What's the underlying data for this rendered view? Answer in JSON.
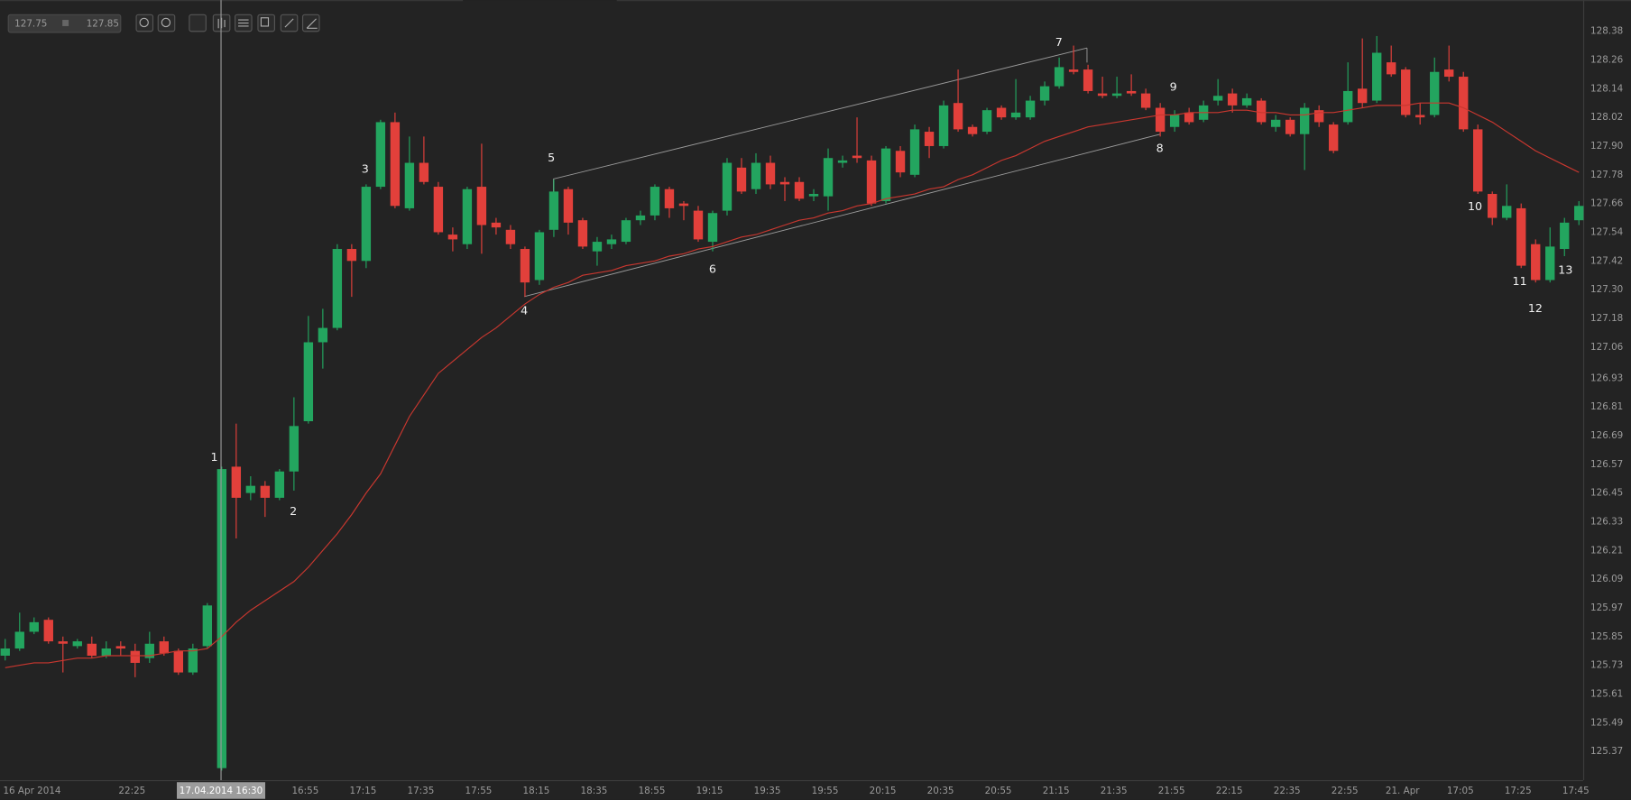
{
  "toolbar": {
    "range_from": "127.75",
    "range_to": "127.85"
  },
  "chart_data": {
    "type": "candlestick",
    "crosshair": "17.04.2014 16:30",
    "categories": [
      "16 Apr 2014",
      null,
      null,
      null,
      null,
      null,
      null,
      null,
      null,
      "22:25",
      null,
      null,
      null,
      null,
      null,
      null,
      null,
      null,
      null,
      null,
      null,
      "16:55",
      null,
      null,
      null,
      "17:15",
      null,
      null,
      null,
      "17:35",
      null,
      null,
      null,
      "17:55",
      null,
      null,
      null,
      "18:15",
      null,
      null,
      null,
      "18:35",
      null,
      null,
      null,
      "18:55",
      null,
      null,
      null,
      "19:15",
      null,
      null,
      null,
      "19:35",
      null,
      null,
      null,
      "19:55",
      null,
      null,
      null,
      "20:15",
      null,
      null,
      null,
      "20:35",
      null,
      null,
      null,
      "20:55",
      null,
      null,
      null,
      "21:15",
      null,
      null,
      null,
      "21:35",
      null,
      null,
      null,
      "21:55",
      null,
      null,
      null,
      "22:15",
      null,
      null,
      null,
      "22:35",
      null,
      null,
      null,
      "22:55",
      null,
      null,
      null,
      "21. Apr",
      null,
      null,
      null,
      "17:05",
      null,
      null,
      null,
      "17:25",
      null,
      null,
      null,
      "17:45"
    ],
    "open": [
      125.77,
      125.8,
      125.87,
      125.92,
      125.83,
      125.81,
      125.82,
      125.77,
      125.81,
      125.79,
      125.76,
      125.83,
      125.79,
      125.7,
      125.81,
      125.3,
      126.56,
      126.45,
      126.48,
      126.43,
      126.54,
      126.75,
      127.08,
      127.14,
      127.47,
      127.42,
      127.73,
      128.0,
      127.64,
      127.83,
      127.73,
      127.53,
      127.49,
      127.73,
      127.58,
      127.55,
      127.47,
      127.34,
      127.55,
      127.72,
      127.59,
      127.46,
      127.49,
      127.5,
      127.59,
      127.61,
      127.72,
      127.66,
      127.63,
      127.5,
      127.63,
      127.81,
      127.72,
      127.83,
      127.75,
      127.75,
      127.69,
      127.69,
      127.83,
      127.86,
      127.84,
      127.67,
      127.88,
      127.78,
      127.96,
      127.9,
      128.08,
      127.98,
      127.96,
      128.06,
      128.02,
      128.02,
      128.09,
      128.15,
      128.22,
      128.22,
      128.12,
      128.11,
      128.13,
      128.12,
      128.06,
      127.98,
      128.04,
      128.01,
      128.09,
      128.12,
      128.07,
      128.09,
      127.98,
      128.01,
      127.95,
      128.05,
      127.99,
      128.0,
      128.14,
      128.09,
      128.25,
      128.22,
      128.03,
      128.03,
      128.22,
      128.19,
      127.97,
      127.7,
      127.6,
      127.64,
      127.49,
      127.34,
      127.47,
      127.59
    ],
    "high": [
      125.84,
      125.95,
      125.93,
      125.93,
      125.85,
      125.84,
      125.85,
      125.83,
      125.83,
      125.82,
      125.87,
      125.85,
      125.8,
      125.82,
      125.99,
      126.56,
      126.74,
      126.52,
      126.5,
      126.55,
      126.85,
      127.19,
      127.22,
      127.49,
      127.49,
      127.74,
      128.01,
      128.04,
      127.94,
      127.94,
      127.75,
      127.56,
      127.73,
      127.91,
      127.6,
      127.57,
      127.48,
      127.55,
      127.76,
      127.73,
      127.6,
      127.52,
      127.53,
      127.6,
      127.63,
      127.74,
      127.73,
      127.67,
      127.65,
      127.63,
      127.85,
      127.85,
      127.87,
      127.86,
      127.77,
      127.77,
      127.72,
      127.89,
      127.86,
      128.02,
      127.86,
      127.9,
      127.9,
      127.99,
      127.98,
      128.09,
      128.22,
      127.99,
      128.06,
      128.07,
      128.18,
      128.11,
      128.17,
      128.27,
      128.32,
      128.24,
      128.19,
      128.19,
      128.2,
      128.14,
      128.08,
      128.05,
      128.06,
      128.09,
      128.18,
      128.14,
      128.12,
      128.1,
      128.03,
      128.02,
      128.08,
      128.07,
      128.0,
      128.25,
      128.35,
      128.36,
      128.32,
      128.23,
      128.08,
      128.27,
      128.32,
      128.21,
      127.99,
      127.71,
      127.74,
      127.66,
      127.51,
      127.56,
      127.6,
      127.67
    ],
    "low": [
      125.75,
      125.79,
      125.86,
      125.82,
      125.7,
      125.8,
      125.76,
      125.76,
      125.77,
      125.68,
      125.74,
      125.77,
      125.69,
      125.69,
      125.8,
      125.29,
      126.26,
      126.42,
      126.35,
      126.42,
      126.46,
      126.74,
      126.97,
      127.13,
      127.27,
      127.39,
      127.72,
      127.64,
      127.63,
      127.74,
      127.53,
      127.46,
      127.47,
      127.45,
      127.53,
      127.47,
      127.27,
      127.32,
      127.52,
      127.53,
      127.47,
      127.4,
      127.47,
      127.49,
      127.57,
      127.59,
      127.6,
      127.59,
      127.5,
      127.46,
      127.61,
      127.7,
      127.7,
      127.72,
      127.67,
      127.67,
      127.67,
      127.63,
      127.81,
      127.83,
      127.65,
      127.66,
      127.77,
      127.77,
      127.85,
      127.89,
      127.96,
      127.94,
      127.95,
      128.01,
      128.01,
      128.01,
      128.07,
      128.14,
      128.2,
      128.12,
      128.1,
      128.1,
      128.11,
      128.05,
      127.94,
      127.96,
      127.99,
      128.0,
      128.07,
      128.04,
      128.06,
      127.99,
      127.96,
      127.94,
      127.8,
      127.98,
      127.87,
      127.99,
      128.06,
      128.08,
      128.19,
      128.02,
      127.99,
      128.02,
      128.17,
      127.96,
      127.7,
      127.57,
      127.59,
      127.39,
      127.33,
      127.33,
      127.44,
      127.57
    ],
    "close": [
      125.8,
      125.87,
      125.91,
      125.83,
      125.82,
      125.83,
      125.77,
      125.8,
      125.8,
      125.74,
      125.82,
      125.78,
      125.7,
      125.8,
      125.98,
      126.55,
      126.43,
      126.48,
      126.43,
      126.54,
      126.73,
      127.08,
      127.14,
      127.47,
      127.42,
      127.73,
      128.0,
      127.65,
      127.83,
      127.75,
      127.54,
      127.51,
      127.72,
      127.57,
      127.56,
      127.49,
      127.33,
      127.54,
      127.71,
      127.58,
      127.48,
      127.5,
      127.51,
      127.59,
      127.61,
      127.73,
      127.64,
      127.65,
      127.51,
      127.62,
      127.83,
      127.71,
      127.83,
      127.74,
      127.74,
      127.68,
      127.7,
      127.85,
      127.84,
      127.85,
      127.66,
      127.89,
      127.79,
      127.97,
      127.9,
      128.07,
      127.97,
      127.95,
      128.05,
      128.02,
      128.04,
      128.09,
      128.15,
      128.23,
      128.21,
      128.13,
      128.11,
      128.12,
      128.12,
      128.06,
      127.96,
      128.03,
      128.0,
      128.07,
      128.11,
      128.07,
      128.1,
      128.0,
      128.01,
      127.95,
      128.06,
      128.0,
      127.88,
      128.13,
      128.08,
      128.29,
      128.2,
      128.03,
      128.02,
      128.21,
      128.19,
      127.97,
      127.71,
      127.6,
      127.65,
      127.4,
      127.34,
      127.48,
      127.58,
      127.65
    ],
    "up_color": "#23a55f",
    "down_color": "#e2403b",
    "moving_average": {
      "color": "#c9372f",
      "values": [
        125.72,
        125.73,
        125.74,
        125.74,
        125.75,
        125.76,
        125.76,
        125.77,
        125.77,
        125.77,
        125.77,
        125.78,
        125.79,
        125.79,
        125.8,
        125.85,
        125.91,
        125.96,
        126.0,
        126.04,
        126.08,
        126.14,
        126.21,
        126.28,
        126.36,
        126.45,
        126.53,
        126.65,
        126.77,
        126.86,
        126.95,
        127.0,
        127.05,
        127.1,
        127.14,
        127.19,
        127.24,
        127.28,
        127.31,
        127.33,
        127.36,
        127.37,
        127.38,
        127.4,
        127.41,
        127.42,
        127.44,
        127.45,
        127.47,
        127.48,
        127.5,
        127.52,
        127.53,
        127.55,
        127.57,
        127.59,
        127.6,
        127.62,
        127.63,
        127.65,
        127.66,
        127.68,
        127.69,
        127.7,
        127.72,
        127.73,
        127.76,
        127.78,
        127.81,
        127.84,
        127.86,
        127.89,
        127.92,
        127.94,
        127.96,
        127.98,
        127.99,
        128.0,
        128.01,
        128.02,
        128.03,
        128.03,
        128.04,
        128.04,
        128.04,
        128.05,
        128.05,
        128.04,
        128.04,
        128.03,
        128.03,
        128.04,
        128.04,
        128.05,
        128.06,
        128.07,
        128.07,
        128.07,
        128.08,
        128.08,
        128.08,
        128.06,
        128.03,
        128.0,
        127.96,
        127.92,
        127.88,
        127.85,
        127.82,
        127.79
      ]
    },
    "annotations": [
      "1",
      "2",
      "3",
      "4",
      "5",
      "6",
      "7",
      "8",
      "9",
      "10",
      "11",
      "12",
      "13"
    ],
    "ylim": [
      125.25,
      128.51
    ],
    "yticks": [
      128.38,
      128.26,
      128.14,
      128.02,
      {
        "value": 127.9,
        "label": "127.90"
      },
      127.78,
      127.66,
      127.54,
      127.42,
      {
        "value": 127.3,
        "label": "127.30"
      },
      127.18,
      127.06,
      126.93,
      126.81,
      126.69,
      126.57,
      126.45,
      126.33,
      126.21,
      126.09,
      125.97,
      125.85,
      125.73,
      125.61,
      125.49,
      125.37
    ],
    "grid": false
  }
}
